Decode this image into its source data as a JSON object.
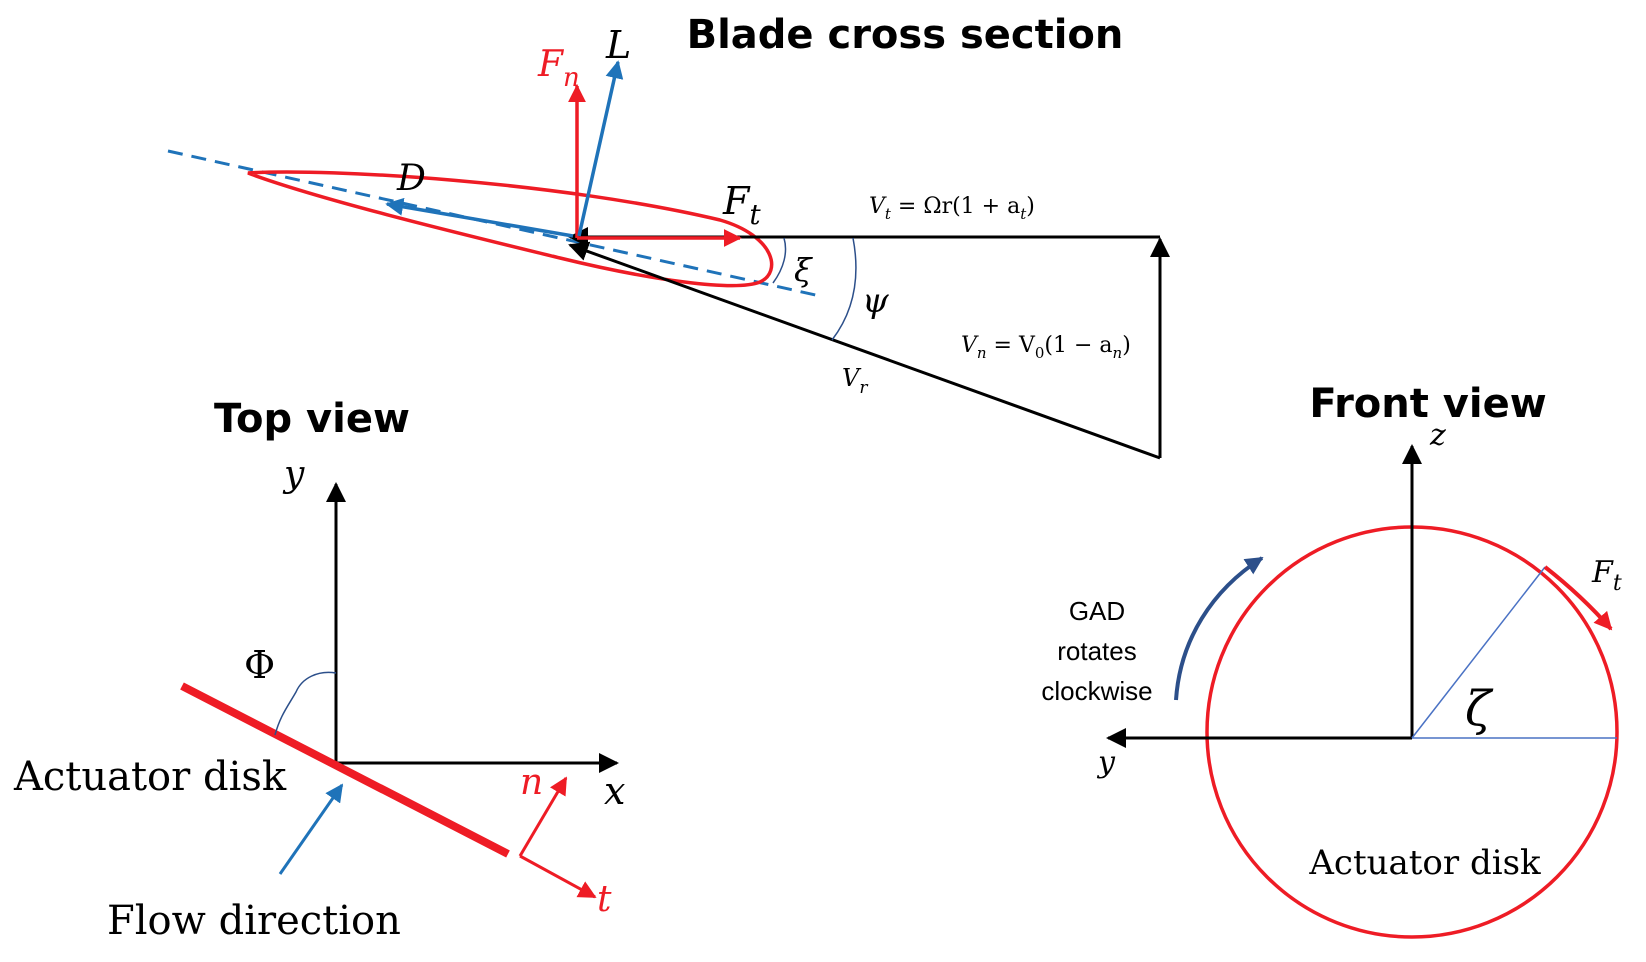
{
  "colors": {
    "black": "#000000",
    "red": "#ee1c25",
    "blue": "#1f73b9",
    "thin_blue": "#4a72c4",
    "dark_blue": "#2c4f8a"
  },
  "titles": {
    "blade_cross_section": "Blade cross section",
    "top_view": "Top view",
    "front_view": "Front view"
  },
  "blade": {
    "fn_main": "F",
    "fn_sub": "n",
    "lift": "L",
    "drag": "D",
    "ft_main": "F",
    "ft_sub": "t",
    "xi": "ξ",
    "psi": "ψ",
    "vt_main": "V",
    "vt_sub": "t",
    "vt_rhs": " = Ωr(1 + a",
    "vt_rhs_sub": "t",
    "vt_close": ")",
    "vn_main": "V",
    "vn_sub": "n",
    "vn_rhs": " = V",
    "vn_rhs_sub": "0",
    "vn_rhs2": "(1 − a",
    "vn_rhs2_sub": "n",
    "vn_close": ")",
    "vr_main": "V",
    "vr_sub": "r"
  },
  "top_view": {
    "y_axis": "y",
    "x_axis": "x",
    "phi": "Φ",
    "actuator_disk": "Actuator disk",
    "n_label": "n",
    "t_label": "t",
    "flow_direction": "Flow direction"
  },
  "front_view": {
    "z_axis": "z",
    "y_axis": "y",
    "ft_main": "F",
    "ft_sub": "t",
    "zeta": "ζ",
    "rotation_line1": "GAD",
    "rotation_line2": "rotates",
    "rotation_line3": "clockwise",
    "actuator_disk": "Actuator disk"
  }
}
